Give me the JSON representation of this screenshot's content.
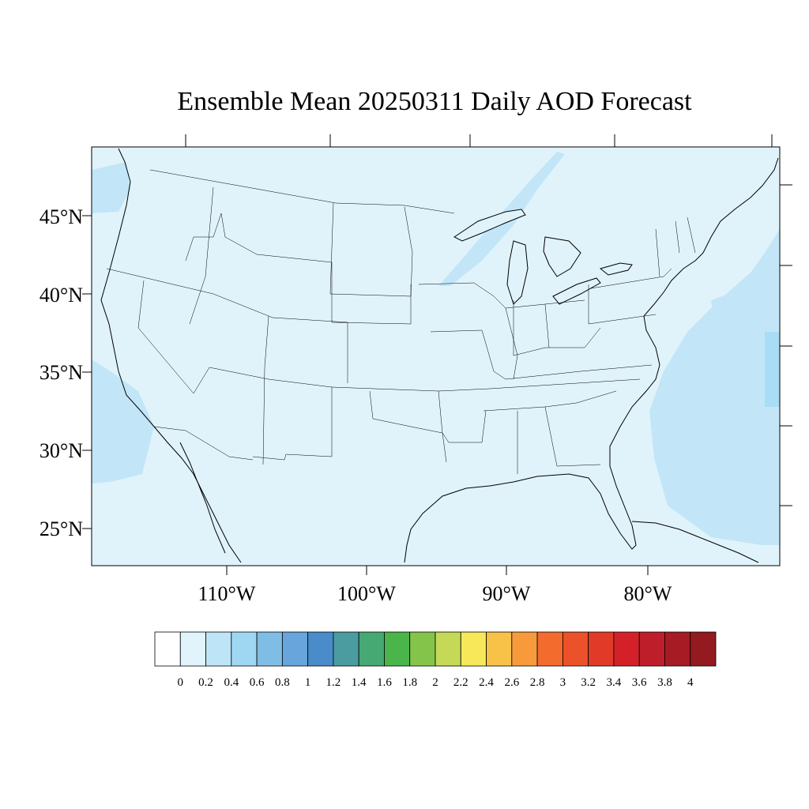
{
  "title": "Ensemble Mean 20250311 Daily AOD Forecast",
  "map": {
    "region": "Contiguous United States",
    "lat_labels": [
      "45°N",
      "40°N",
      "35°N",
      "30°N",
      "25°N"
    ],
    "lon_labels": [
      "110°W",
      "100°W",
      "90°W",
      "80°W"
    ],
    "field_colors": {
      "background": "#e0f3fb",
      "ocean_plume": "#c2e6f8",
      "strip": "#a9dcf5",
      "lines": "#000000"
    }
  },
  "colorbar": {
    "labels": [
      "0",
      "0.2",
      "0.4",
      "0.6",
      "0.8",
      "1",
      "1.2",
      "1.4",
      "1.6",
      "1.8",
      "2",
      "2.2",
      "2.4",
      "2.6",
      "2.8",
      "3",
      "3.2",
      "3.4",
      "3.6",
      "3.8",
      "4"
    ],
    "colors": [
      "#ffffff",
      "#e1f3fb",
      "#bde5f7",
      "#9fd7f3",
      "#80bde4",
      "#68a5dc",
      "#4a8bc9",
      "#4a9ca0",
      "#46a873",
      "#4ab54a",
      "#85c44b",
      "#c5d956",
      "#f7e85a",
      "#f8c147",
      "#f69a3c",
      "#f36c2e",
      "#eb5229",
      "#e23a28",
      "#d42129",
      "#be1e2a",
      "#a71b24",
      "#931a1f"
    ]
  }
}
